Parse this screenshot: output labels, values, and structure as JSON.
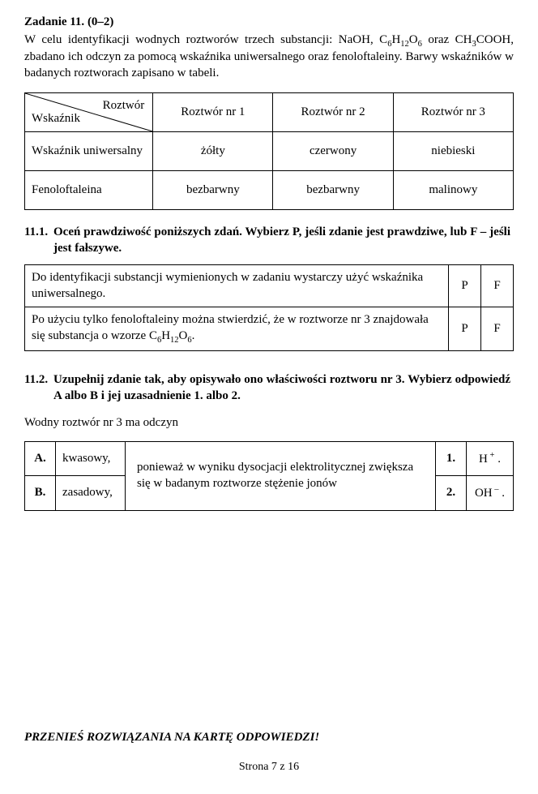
{
  "task": {
    "header_label": "Zadanie 11.",
    "points": "(0–2)",
    "intro_html": "W celu identyfikacji wodnych roztworów trzech substancji: NaOH, C<sub>6</sub>H<sub>12</sub>O<sub>6</sub> oraz CH<sub>3</sub>COOH, zbadano ich odczyn za pomocą wskaźnika uniwersalnego oraz fenoloftaleiny. Barwy wskaźników w badanych roztworach zapisano w tabeli."
  },
  "table1": {
    "diag_top": "Roztwór",
    "diag_bottom": "Wskaźnik",
    "cols": [
      "Roztwór nr 1",
      "Roztwór nr 2",
      "Roztwór nr 3"
    ],
    "rows": [
      {
        "label": "Wskaźnik uniwersalny",
        "cells": [
          "żółty",
          "czerwony",
          "niebieski"
        ]
      },
      {
        "label": "Fenoloftaleina",
        "cells": [
          "bezbarwny",
          "bezbarwny",
          "malinowy"
        ]
      }
    ]
  },
  "q1": {
    "num": "11.1.",
    "title": "Oceń prawdziwość poniższych zdań. Wybierz P, jeśli zdanie jest prawdziwe, lub F – jeśli jest fałszywe.",
    "P": "P",
    "F": "F",
    "statements": [
      "Do identyfikacji substancji wymienionych w zadaniu wystarczy użyć wskaźnika uniwersalnego.",
      "Po użyciu tylko fenoloftaleiny można stwierdzić, że w roztworze nr 3 znajdowała się substancja o wzorze C<sub>6</sub>H<sub>12</sub>O<sub>6</sub>."
    ]
  },
  "q2": {
    "num": "11.2.",
    "title": "Uzupełnij zdanie tak, aby opisywało ono właściwości roztworu nr 3. Wybierz odpowiedź A albo B i jej uzasadnienie 1. albo 2.",
    "lead": "Wodny roztwór nr 3 ma odczyn",
    "A": "A.",
    "optA": "kwasowy,",
    "B": "B.",
    "optB": "zasadowy,",
    "mid": "ponieważ w wyniku dysocjacji elektrolitycznej zwiększa się w badanym roztworze stężenie jonów",
    "n1": "1.",
    "ion1_html": "H<sup>&nbsp;+</sup> .",
    "n2": "2.",
    "ion2_html": "OH<sup>&nbsp;–</sup> ."
  },
  "footer": {
    "instr": "PRZENIEŚ ROZWIĄZANIA NA KARTĘ ODPOWIEDZI!",
    "page": "Strona 7 z 16"
  }
}
